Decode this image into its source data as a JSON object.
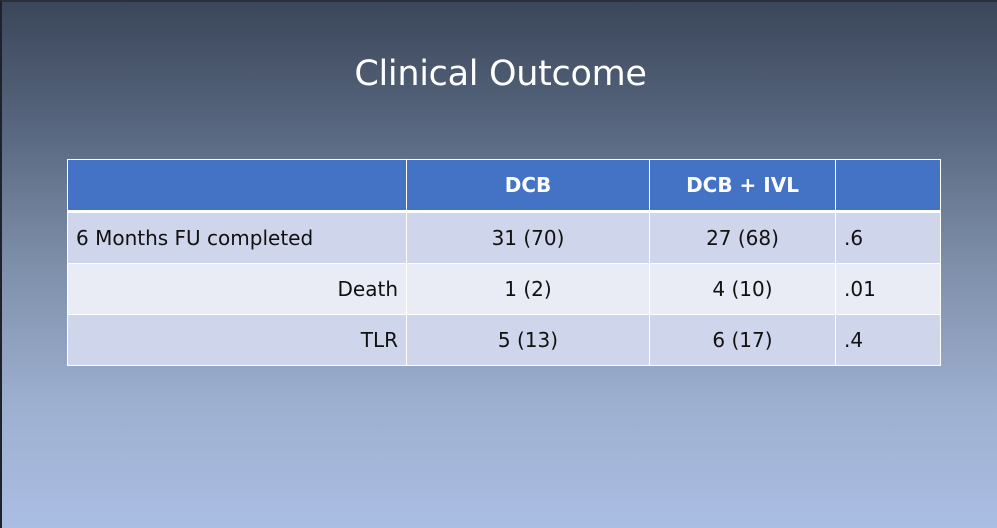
{
  "slide": {
    "title": "Clinical Outcome"
  },
  "table": {
    "headers": [
      "",
      "DCB",
      "DCB + IVL",
      ""
    ],
    "rows": [
      {
        "label": "6 Months FU completed",
        "dcb": "31 (70)",
        "dcb_ivl": "27 (68)",
        "p": ".6"
      },
      {
        "label": "Death",
        "dcb": "1 (2)",
        "dcb_ivl": "4 (10)",
        "p": ".01"
      },
      {
        "label": "TLR",
        "dcb": "5 (13)",
        "dcb_ivl": "6 (17)",
        "p": ".4"
      }
    ]
  },
  "colors": {
    "header_fill": "#4472c4",
    "row_odd": "#cfd5ea",
    "row_even": "#e9ebf5",
    "title_text": "#ffffff"
  }
}
